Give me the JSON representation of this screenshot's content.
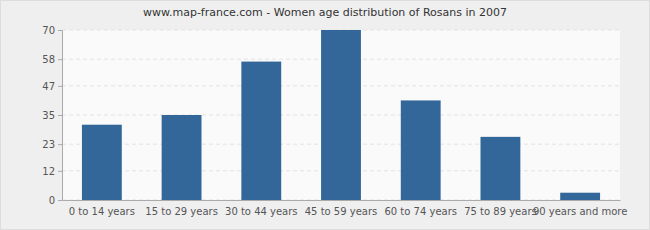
{
  "chart_data": {
    "type": "bar",
    "title": "www.map-france.com - Women age distribution of Rosans in 2007",
    "categories": [
      "0 to 14 years",
      "15 to 29 years",
      "30 to 44 years",
      "45 to 59 years",
      "60 to 74 years",
      "75 to 89 years",
      "90 years and more"
    ],
    "values": [
      31,
      35,
      57,
      70,
      41,
      26,
      3
    ],
    "color": "#336699",
    "ylim": [
      0,
      70
    ],
    "yticks": [
      0,
      12,
      23,
      35,
      47,
      58,
      70
    ],
    "grid": true
  }
}
